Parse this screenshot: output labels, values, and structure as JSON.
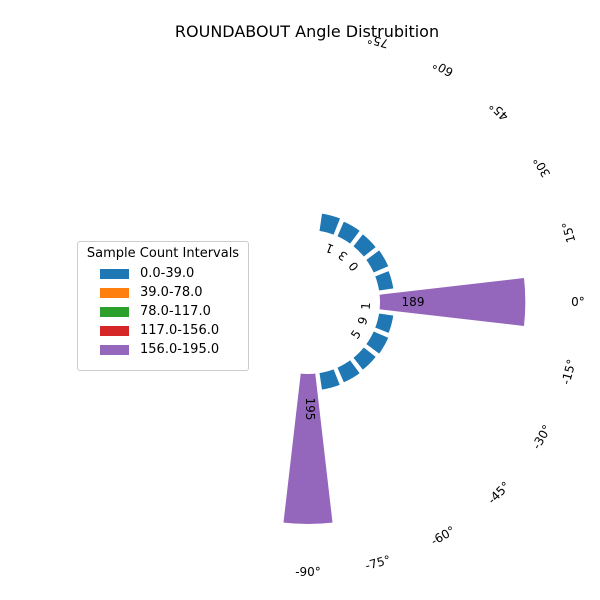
{
  "chart_data": {
    "type": "bar",
    "subtype": "polar-half-rose",
    "title": "ROUNDABOUT Angle Distrubition",
    "angles": [
      90,
      75,
      60,
      45,
      30,
      15,
      0,
      -15,
      -30,
      -45,
      -60,
      -75,
      -90
    ],
    "angle_tick_labels": [
      "75°",
      "60°",
      "45°",
      "30°",
      "15°",
      "0°",
      "-15°",
      "-30°",
      "-45°",
      "-60°",
      "-75°",
      "-90°"
    ],
    "values": [
      0,
      25,
      23,
      22,
      23,
      21,
      189,
      21,
      23,
      22,
      23,
      24,
      195
    ],
    "bar_colors": [
      "#1f77b4",
      "#1f77b4",
      "#1f77b4",
      "#1f77b4",
      "#1f77b4",
      "#1f77b4",
      "#9467bd",
      "#1f77b4",
      "#1f77b4",
      "#1f77b4",
      "#1f77b4",
      "#1f77b4",
      "#9467bd"
    ],
    "radial_ticks": [
      130,
      195
    ],
    "radial_tick_labels": [
      "130",
      "195"
    ],
    "value_labels": [
      {
        "angle": 0,
        "text": "189"
      },
      {
        "angle": -90,
        "text": "195"
      }
    ],
    "legend": {
      "title": "Sample Count Intervals",
      "position": "center-left",
      "entries": [
        {
          "label": "0.0-39.0",
          "color": "#1f77b4"
        },
        {
          "label": "39.0-78.0",
          "color": "#ff7f0e"
        },
        {
          "label": "78.0-117.0",
          "color": "#2ca02c"
        },
        {
          "label": "117.0-156.0",
          "color": "#d62728"
        },
        {
          "label": "156.0-195.0",
          "color": "#9467bd"
        }
      ]
    }
  }
}
